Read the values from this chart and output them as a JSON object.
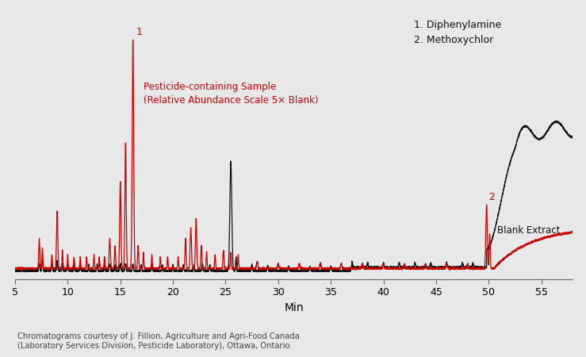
{
  "bg_color": "#e8e8e8",
  "xlim": [
    5,
    58
  ],
  "xticks": [
    5,
    10,
    15,
    20,
    25,
    30,
    35,
    40,
    45,
    50,
    55
  ],
  "xlabel": "Min",
  "red_label": "Pesticide-containing Sample\n(Relative Abundance Scale 5× Blank)",
  "black_label": "Blank Extract",
  "peak1_label": "1",
  "peak2_label": "2",
  "legend_text": "1. Diphenylamine\n2. Methoxychlor",
  "footnote": "Chromatograms courtesy of J. Fillion, Agriculture and Agri-Food Canada\n(Laboratory Services Division, Pesticide Laboratory), Ottawa, Ontario.",
  "red_color": "#cc0000",
  "black_color": "#111111"
}
